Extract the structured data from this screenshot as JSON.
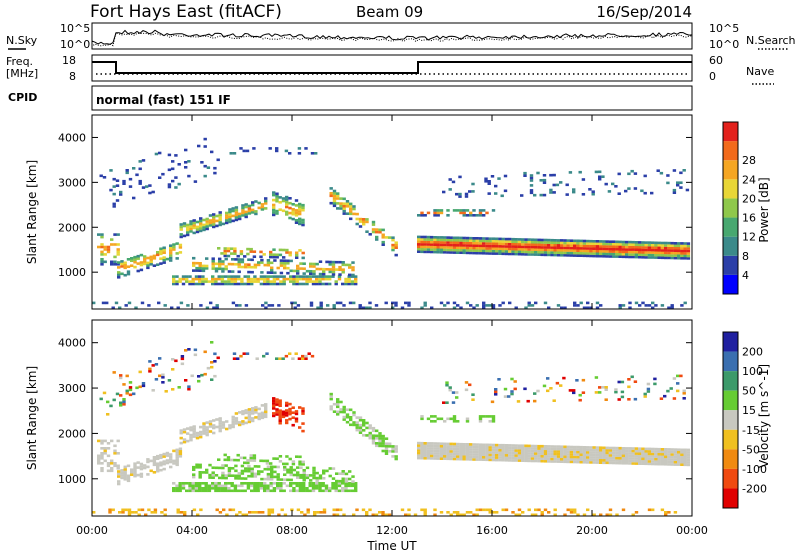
{
  "header": {
    "station": "Fort Hays East (fitACF)",
    "beam": "Beam 09",
    "date": "16/Sep/2014"
  },
  "noise_panel": {
    "left_label": "N.Sky",
    "right_label": "N.Search",
    "left_ticks": [
      "10^5",
      "10^0"
    ],
    "right_ticks": [
      "10^5",
      "10^0"
    ]
  },
  "freq_panel": {
    "left_label_line1": "Freq.",
    "left_label_line2": "[MHz]",
    "left_ticks": [
      "18",
      "8"
    ],
    "right_label": "Nave",
    "right_ticks": [
      "60",
      "0"
    ]
  },
  "cpid_panel": {
    "label": "CPID",
    "text": "normal (fast) 151 IF"
  },
  "chart_data": [
    {
      "type": "heatmap",
      "name": "power",
      "ylabel": "Slant Range [km]",
      "xlabel": "",
      "y_ticks": [
        1000,
        2000,
        3000,
        4000
      ],
      "ylim": [
        180,
        4500
      ],
      "colorbar": {
        "label": "Power [dB]",
        "ticks": [
          "4",
          "8",
          "12",
          "16",
          "20",
          "24",
          "28"
        ],
        "colors": [
          "#0000ff",
          "#2b3fa8",
          "#3b8a8a",
          "#48a870",
          "#8fc84b",
          "#e8d636",
          "#f5a623",
          "#f26a1b",
          "#e3211c"
        ]
      }
    },
    {
      "type": "heatmap",
      "name": "velocity",
      "ylabel": "Slant Range [km]",
      "xlabel": "Time UT",
      "y_ticks": [
        1000,
        2000,
        3000,
        4000
      ],
      "ylim": [
        180,
        4500
      ],
      "x_ticks": [
        "00:00",
        "04:00",
        "08:00",
        "12:00",
        "16:00",
        "20:00",
        "00:00"
      ],
      "colorbar": {
        "label": "Velocity [m s^-1]",
        "ticks": [
          "200",
          "100",
          "50",
          "15",
          "-15",
          "-50",
          "-100",
          "-200"
        ],
        "colors": [
          "#2020a0",
          "#3a6fb0",
          "#3c9a6a",
          "#66cc33",
          "#c8c8c0",
          "#f0c020",
          "#f08a10",
          "#f04a10",
          "#e00000"
        ]
      }
    }
  ]
}
